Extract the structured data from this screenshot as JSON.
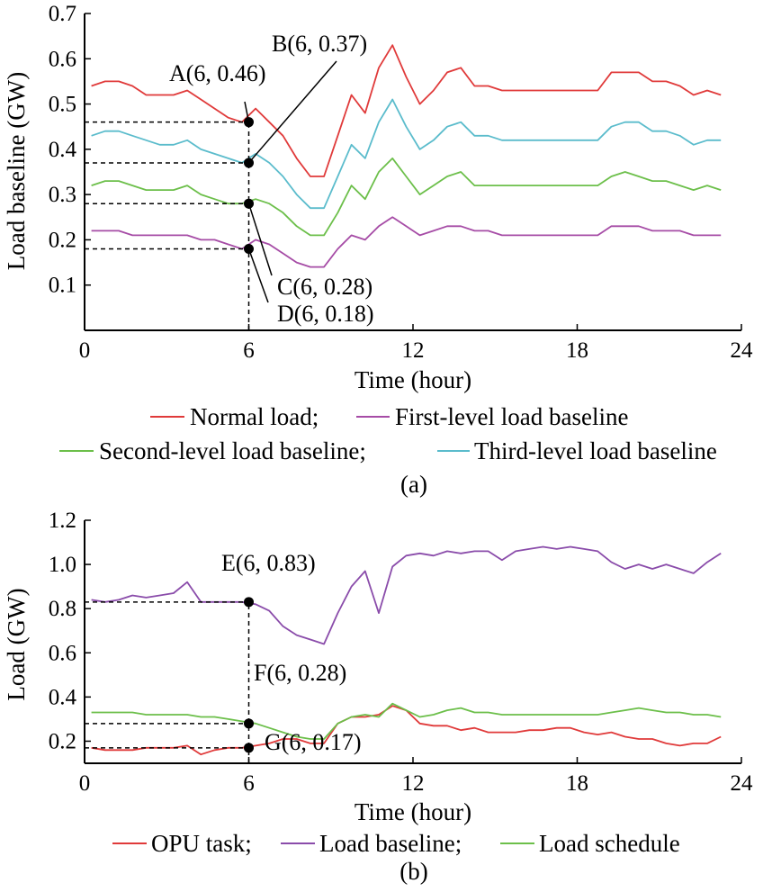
{
  "chart_data": [
    {
      "type": "line",
      "panel_label": "(a)",
      "xlabel": "Time (hour)",
      "ylabel": "Load baseline (GW)",
      "xlim": [
        0,
        24
      ],
      "ylim": [
        0,
        0.7
      ],
      "xticks": [
        "0",
        "6",
        "12",
        "18",
        "24"
      ],
      "yticks": [
        "0.1",
        "0.2",
        "0.3",
        "0.4",
        "0.5",
        "0.6",
        "0.7"
      ],
      "x": [
        0.25,
        0.75,
        1.25,
        1.75,
        2.25,
        2.75,
        3.25,
        3.75,
        4.25,
        4.75,
        5.25,
        5.75,
        6.25,
        6.75,
        7.25,
        7.75,
        8.25,
        8.75,
        9.25,
        9.75,
        10.25,
        10.75,
        11.25,
        11.75,
        12.25,
        12.75,
        13.25,
        13.75,
        14.25,
        14.75,
        15.25,
        15.75,
        16.25,
        16.75,
        17.25,
        17.75,
        18.25,
        18.75,
        19.25,
        19.75,
        20.25,
        20.75,
        21.25,
        21.75,
        22.25,
        22.75,
        23.25
      ],
      "series": [
        {
          "name": "Normal load",
          "color": "#e03a3a",
          "values": [
            0.54,
            0.55,
            0.55,
            0.54,
            0.52,
            0.52,
            0.52,
            0.53,
            0.51,
            0.49,
            0.47,
            0.46,
            0.49,
            0.46,
            0.43,
            0.38,
            0.34,
            0.34,
            0.43,
            0.52,
            0.48,
            0.58,
            0.63,
            0.56,
            0.5,
            0.53,
            0.57,
            0.58,
            0.54,
            0.54,
            0.53,
            0.53,
            0.53,
            0.53,
            0.53,
            0.53,
            0.53,
            0.53,
            0.57,
            0.57,
            0.57,
            0.55,
            0.55,
            0.54,
            0.52,
            0.53,
            0.52
          ]
        },
        {
          "name": "First-level load baseline",
          "color": "#a64ca6",
          "values": [
            0.22,
            0.22,
            0.22,
            0.21,
            0.21,
            0.21,
            0.21,
            0.21,
            0.2,
            0.2,
            0.19,
            0.18,
            0.2,
            0.19,
            0.17,
            0.15,
            0.14,
            0.14,
            0.18,
            0.21,
            0.2,
            0.23,
            0.25,
            0.23,
            0.21,
            0.22,
            0.23,
            0.23,
            0.22,
            0.22,
            0.21,
            0.21,
            0.21,
            0.21,
            0.21,
            0.21,
            0.21,
            0.21,
            0.23,
            0.23,
            0.23,
            0.22,
            0.22,
            0.22,
            0.21,
            0.21,
            0.21
          ]
        },
        {
          "name": "Second-level load baseline",
          "color": "#6cbf4a",
          "values": [
            0.32,
            0.33,
            0.33,
            0.32,
            0.31,
            0.31,
            0.31,
            0.32,
            0.3,
            0.29,
            0.28,
            0.28,
            0.29,
            0.28,
            0.26,
            0.23,
            0.21,
            0.21,
            0.26,
            0.32,
            0.29,
            0.35,
            0.38,
            0.34,
            0.3,
            0.32,
            0.34,
            0.35,
            0.32,
            0.32,
            0.32,
            0.32,
            0.32,
            0.32,
            0.32,
            0.32,
            0.32,
            0.32,
            0.34,
            0.35,
            0.34,
            0.33,
            0.33,
            0.32,
            0.31,
            0.32,
            0.31
          ]
        },
        {
          "name": "Third-level load baseline",
          "color": "#5bbccc",
          "values": [
            0.43,
            0.44,
            0.44,
            0.43,
            0.42,
            0.41,
            0.41,
            0.42,
            0.4,
            0.39,
            0.38,
            0.37,
            0.39,
            0.37,
            0.34,
            0.3,
            0.27,
            0.27,
            0.34,
            0.41,
            0.38,
            0.46,
            0.51,
            0.45,
            0.4,
            0.42,
            0.45,
            0.46,
            0.43,
            0.43,
            0.42,
            0.42,
            0.42,
            0.42,
            0.42,
            0.42,
            0.42,
            0.42,
            0.45,
            0.46,
            0.46,
            0.44,
            0.44,
            0.43,
            0.41,
            0.42,
            0.42
          ]
        }
      ],
      "annotations": [
        {
          "label": "A(6, 0.46)",
          "x": 6,
          "y": 0.46
        },
        {
          "label": "B(6, 0.37)",
          "x": 6,
          "y": 0.37
        },
        {
          "label": "C(6, 0.28)",
          "x": 6,
          "y": 0.28
        },
        {
          "label": "D(6, 0.18)",
          "x": 6,
          "y": 0.18
        }
      ],
      "legend": [
        [
          "Normal load;",
          "First-level load baseline"
        ],
        [
          "Second-level load baseline;",
          "Third-level load baseline"
        ]
      ]
    },
    {
      "type": "line",
      "panel_label": "(b)",
      "xlabel": "Time (hour)",
      "ylabel": "Load (GW)",
      "xlim": [
        0,
        24
      ],
      "ylim": [
        0.1,
        1.2
      ],
      "xticks": [
        "0",
        "6",
        "12",
        "18",
        "24"
      ],
      "yticks": [
        "0.2",
        "0.4",
        "0.6",
        "0.8",
        "1.0",
        "1.2"
      ],
      "x": [
        0.25,
        0.75,
        1.25,
        1.75,
        2.25,
        2.75,
        3.25,
        3.75,
        4.25,
        4.75,
        5.25,
        5.75,
        6.25,
        6.75,
        7.25,
        7.75,
        8.25,
        8.75,
        9.25,
        9.75,
        10.25,
        10.75,
        11.25,
        11.75,
        12.25,
        12.75,
        13.25,
        13.75,
        14.25,
        14.75,
        15.25,
        15.75,
        16.25,
        16.75,
        17.25,
        17.75,
        18.25,
        18.75,
        19.25,
        19.75,
        20.25,
        20.75,
        21.25,
        21.75,
        22.25,
        22.75,
        23.25
      ],
      "series": [
        {
          "name": "OPU task",
          "color": "#e03a3a",
          "values": [
            0.17,
            0.16,
            0.16,
            0.16,
            0.17,
            0.17,
            0.17,
            0.18,
            0.14,
            0.16,
            0.17,
            0.17,
            0.18,
            0.19,
            0.21,
            0.21,
            0.19,
            0.19,
            0.28,
            0.31,
            0.31,
            0.32,
            0.36,
            0.34,
            0.28,
            0.27,
            0.27,
            0.25,
            0.26,
            0.24,
            0.24,
            0.24,
            0.25,
            0.25,
            0.26,
            0.26,
            0.24,
            0.23,
            0.24,
            0.22,
            0.21,
            0.21,
            0.19,
            0.18,
            0.19,
            0.19,
            0.22
          ]
        },
        {
          "name": "Load baseline",
          "color": "#8a4caa",
          "values": [
            0.84,
            0.83,
            0.84,
            0.86,
            0.85,
            0.86,
            0.87,
            0.92,
            0.83,
            0.83,
            0.83,
            0.83,
            0.82,
            0.79,
            0.72,
            0.68,
            0.66,
            0.64,
            0.78,
            0.9,
            0.97,
            0.78,
            0.99,
            1.04,
            1.05,
            1.04,
            1.06,
            1.05,
            1.06,
            1.06,
            1.02,
            1.06,
            1.07,
            1.08,
            1.07,
            1.08,
            1.07,
            1.06,
            1.01,
            0.98,
            1.0,
            0.98,
            1.0,
            0.98,
            0.96,
            1.01,
            1.05
          ]
        },
        {
          "name": "Load schedule",
          "color": "#6cbf4a",
          "values": [
            0.33,
            0.33,
            0.33,
            0.33,
            0.32,
            0.32,
            0.32,
            0.32,
            0.31,
            0.31,
            0.3,
            0.29,
            0.28,
            0.26,
            0.24,
            0.22,
            0.21,
            0.21,
            0.28,
            0.31,
            0.32,
            0.31,
            0.37,
            0.34,
            0.31,
            0.32,
            0.34,
            0.35,
            0.33,
            0.33,
            0.32,
            0.32,
            0.32,
            0.32,
            0.32,
            0.32,
            0.32,
            0.32,
            0.33,
            0.34,
            0.35,
            0.34,
            0.33,
            0.33,
            0.32,
            0.32,
            0.31
          ]
        }
      ],
      "annotations": [
        {
          "label": "E(6, 0.83)",
          "x": 6,
          "y": 0.83
        },
        {
          "label": "F(6, 0.28)",
          "x": 6,
          "y": 0.28
        },
        {
          "label": "G(6, 0.17)",
          "x": 6,
          "y": 0.17
        }
      ],
      "legend": [
        [
          "OPU task;",
          "Load baseline;",
          "Load schedule"
        ]
      ]
    }
  ]
}
